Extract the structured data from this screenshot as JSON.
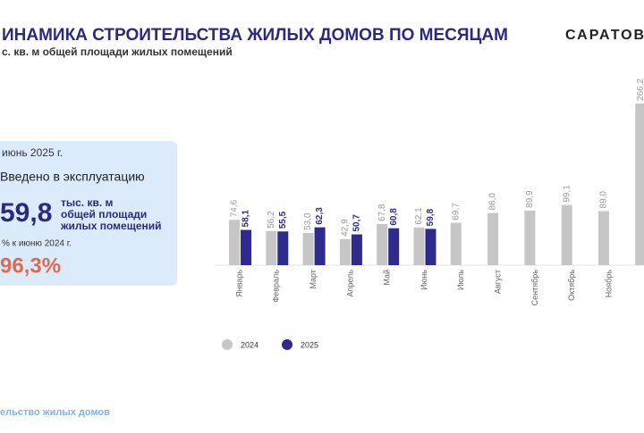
{
  "header": {
    "title": "ИНАМИКА СТРОИТЕЛЬСТВА ЖИЛЫХ ДОМОВ ПО МЕСЯЦАМ",
    "subtitle": "с. кв. м общей площади жилых помещений",
    "brand": "САРАТОВС"
  },
  "panel": {
    "period": "июнь 2025 г.",
    "caption": "Введено в эксплуатацию",
    "value": "59,8",
    "unit_lines": [
      "тыс. кв. м",
      "общей площади",
      "жилых помещений"
    ],
    "compare_caption": "% к  июню 2024 г.",
    "compare_value": "96,3%"
  },
  "footer": {
    "text": "ельство жилых домов"
  },
  "chart_data": {
    "type": "bar",
    "categories": [
      "Январь",
      "Февраль",
      "Март",
      "Апрель",
      "Май",
      "Июнь",
      "Июль",
      "Август",
      "Сентябрь",
      "Октябрь",
      "Ноябрь",
      null
    ],
    "series": [
      {
        "name": "2024",
        "color": "#c6c6c6",
        "values": [
          74.6,
          56.2,
          53.0,
          42.9,
          67.8,
          62.1,
          69.7,
          86.0,
          89.9,
          99.1,
          89.0,
          266.2
        ],
        "value_labels": [
          "74,6",
          "56,2",
          "53,0",
          "42,9",
          "67,8",
          "62,1",
          "69,7",
          "86,0",
          "89,9",
          "99,1",
          "89,0",
          "266,2"
        ]
      },
      {
        "name": "2025",
        "color": "#2f2b8c",
        "values": [
          58.1,
          55.5,
          62.3,
          50.7,
          60.8,
          59.8,
          null,
          null,
          null,
          null,
          null,
          null
        ],
        "value_labels": [
          "58,1",
          "55,5",
          "62,3",
          "50,7",
          "60,8",
          "59,8",
          null,
          null,
          null,
          null,
          null,
          null
        ]
      }
    ],
    "legend": "bottom"
  }
}
